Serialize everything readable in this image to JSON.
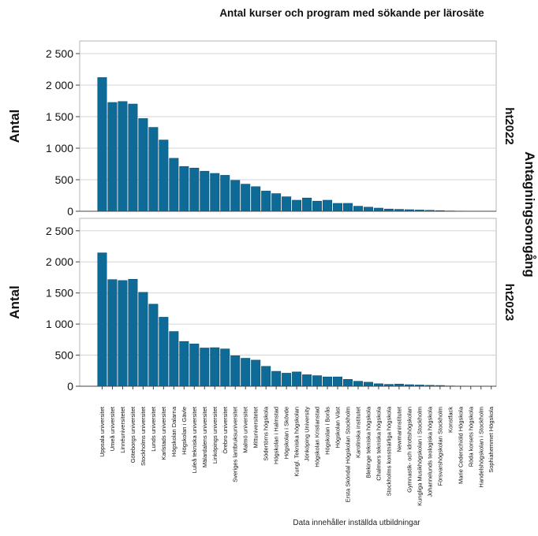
{
  "chart_data": {
    "type": "bar",
    "title": "Antal kurser och program med sökande per lärosäte",
    "ylabel": "Antal",
    "facet_label": "Antagningsomgång",
    "footnote": "Data innehåller inställda utbildningar",
    "ylim": [
      0,
      2700
    ],
    "yticks": [
      0,
      500,
      1000,
      1500,
      2000,
      2500
    ],
    "ytick_labels": [
      "0",
      "500",
      "1 000",
      "1 500",
      "2 000",
      "2 500"
    ],
    "grid": true,
    "bar_color": "#0e6b98",
    "categories": [
      "Uppsala universitet",
      "Umeå universitet",
      "Linnéuniversitetet",
      "Göteborgs universitet",
      "Stockholms universitet",
      "Lunds universitet",
      "Karlstads universitet",
      "Högskolan Dalarna",
      "Högskolan i Gävle",
      "Luleå tekniska universitet",
      "Mälardalens universitet",
      "Linköpings universitet",
      "Örebro universitet",
      "Sveriges lantbruksuniversitet",
      "Malmö universitet",
      "Mittuniversitetet",
      "Södertörns högskola",
      "Högskolan i Halmstad",
      "Högskolan i Skövde",
      "Kungl. Tekniska högskolan",
      "Jönköping University",
      "Högskolan Kristianstad",
      "Högskolan i Borås",
      "Högskolan Väst",
      "Ersta Sköndal Högskolan Stockholm",
      "Karolinska institutet",
      "Blekinge tekniska högskola",
      "Chalmers tekniska högskola",
      "Stockholms konstnärliga högskola",
      "Newmaninstitutet",
      "Gymnastik- och idrottshögskolan",
      "Kungliga Musikhögskolan i Stockholm",
      "Johannelunds teologiska högskola",
      "Försvarshögskolan Stockholm",
      "Konstfack",
      "Marie Cederschiöld Högskola",
      "Röda korsets högskola",
      "Handelshögskolan i Stockholm",
      "Sophiahemmet Högskola"
    ],
    "series": [
      {
        "name": "ht2022",
        "values": [
          2120,
          1725,
          1740,
          1700,
          1470,
          1330,
          1130,
          840,
          710,
          685,
          635,
          600,
          570,
          490,
          430,
          390,
          320,
          280,
          230,
          175,
          210,
          160,
          175,
          125,
          125,
          80,
          65,
          50,
          35,
          30,
          25,
          20,
          15,
          10,
          5,
          3,
          2,
          2,
          1
        ]
      },
      {
        "name": "ht2023",
        "values": [
          2145,
          1715,
          1700,
          1720,
          1510,
          1320,
          1110,
          880,
          720,
          680,
          615,
          620,
          600,
          490,
          450,
          420,
          320,
          240,
          210,
          230,
          185,
          170,
          150,
          150,
          110,
          80,
          65,
          40,
          30,
          35,
          25,
          20,
          15,
          12,
          5,
          3,
          2,
          2,
          1
        ]
      }
    ]
  }
}
